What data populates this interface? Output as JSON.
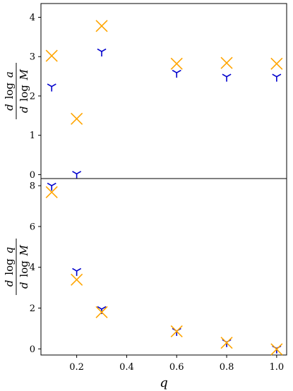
{
  "chart_data": [
    {
      "type": "scatter",
      "title": "",
      "xlabel": "",
      "ylabel": {
        "main": "d log a",
        "under": "d log M",
        "numerator_parts": [
          "d",
          "log",
          "a"
        ],
        "denominator_parts": [
          "d",
          "log",
          "M"
        ]
      },
      "x_categories": [
        "0.1",
        "0.2",
        "0.3",
        "0.6",
        "0.8",
        "1.0"
      ],
      "ylim": [
        -0.1,
        4.35
      ],
      "yticks": [
        0,
        1,
        2,
        3,
        4
      ],
      "grid": false,
      "series": [
        {
          "marker": "tri_down",
          "color": "#0000cc",
          "x": [
            0.1,
            0.2,
            0.3,
            0.6,
            0.8,
            1.0
          ],
          "y": [
            2.24,
            0.02,
            3.13,
            2.59,
            2.49,
            2.49
          ]
        },
        {
          "marker": "x",
          "color": "#ffa500",
          "x": [
            0.1,
            0.2,
            0.3,
            0.6,
            0.8,
            1.0
          ],
          "y": [
            3.02,
            1.42,
            3.78,
            2.82,
            2.84,
            2.82
          ]
        }
      ]
    },
    {
      "type": "scatter",
      "title": "",
      "xlabel": "q",
      "ylabel": {
        "main": "d log q",
        "under": "d log M",
        "numerator_parts": [
          "d",
          "log",
          "q"
        ],
        "denominator_parts": [
          "d",
          "log",
          "M"
        ]
      },
      "xticks": [
        0.2,
        0.4,
        0.6,
        0.8,
        1.0
      ],
      "xtick_labels": [
        "0.2",
        "0.4",
        "0.6",
        "0.8",
        "1.0"
      ],
      "ylim": [
        -0.3,
        8.35
      ],
      "yticks": [
        0,
        2,
        4,
        6,
        8
      ],
      "grid": false,
      "series": [
        {
          "marker": "tri_down",
          "color": "#0000cc",
          "x": [
            0.1,
            0.2,
            0.3,
            0.6,
            0.8,
            1.0
          ],
          "y": [
            8.0,
            3.82,
            1.95,
            0.88,
            0.33,
            0.02
          ]
        },
        {
          "marker": "x",
          "color": "#ffa500",
          "x": [
            0.1,
            0.2,
            0.3,
            0.6,
            0.8,
            1.0
          ],
          "y": [
            7.68,
            3.39,
            1.8,
            0.86,
            0.3,
            -0.02
          ]
        }
      ]
    }
  ]
}
